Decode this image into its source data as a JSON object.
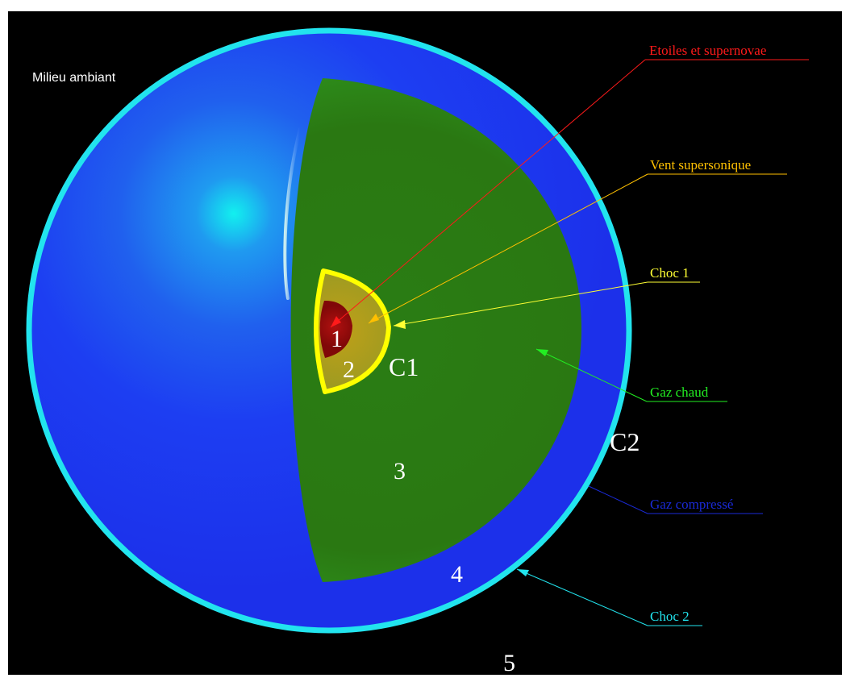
{
  "title": "Milieu ambiant",
  "labels": {
    "etoiles": "Etoiles et supernovae",
    "vent": "Vent supersonique",
    "choc1": "Choc 1",
    "gaz_chaud": "Gaz chaud",
    "gaz_compresse": "Gaz compressé",
    "choc2": "Choc 2"
  },
  "region_numbers": {
    "r1": "1",
    "r2": "2",
    "r3": "3",
    "r4": "4",
    "r5": "5"
  },
  "shock_marks": {
    "c1": "C1",
    "c2": "C2"
  },
  "colors": {
    "background": "#000000",
    "frame": "#ffffff",
    "shell_blue": "#1f3cf0",
    "shell_highlight": "#00e6f0",
    "outer_ring": "#22e4ee",
    "hot_gas": "#2c7a12",
    "wind": "#a8a020",
    "core": "#9a0a0a",
    "inner_ring": "#ffff00",
    "etoiles": "#ff1a1a",
    "vent": "#ffc000",
    "choc1": "#ffff33",
    "gaz_chaud": "#22ee22",
    "gaz_compresse": "#1a2ad8",
    "choc2": "#22e4ee"
  }
}
